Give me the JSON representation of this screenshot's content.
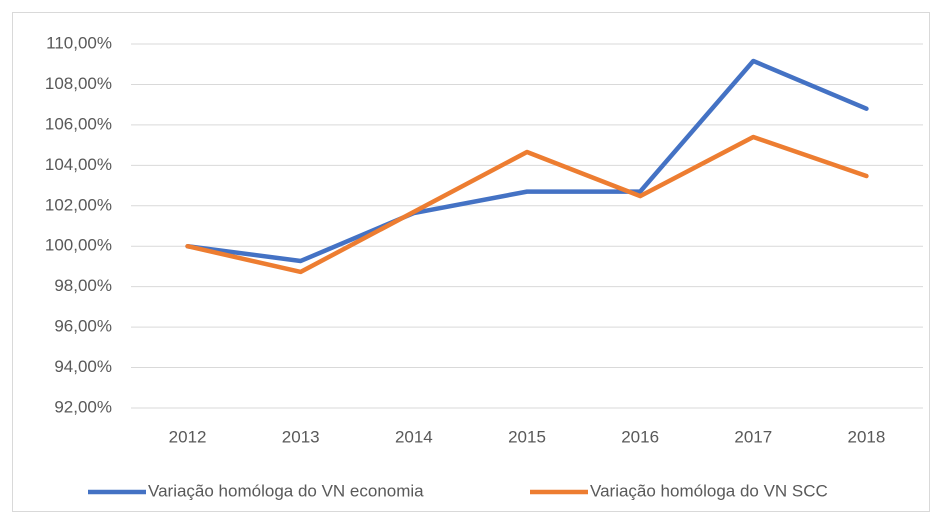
{
  "chart_data": {
    "type": "line",
    "categories": [
      "2012",
      "2013",
      "2014",
      "2015",
      "2016",
      "2017",
      "2018"
    ],
    "series": [
      {
        "name": "Variação homóloga do VN economia",
        "color": "#4472c4",
        "values": [
          100,
          99.27,
          101.64,
          102.7,
          102.7,
          109.16,
          106.8
        ]
      },
      {
        "name": "Variação homóloga do VN SCC",
        "color": "#ed7d31",
        "values": [
          100,
          98.73,
          101.7,
          104.66,
          102.48,
          105.4,
          103.47
        ]
      }
    ],
    "ylim": [
      92,
      110
    ],
    "yticks": [
      {
        "value": 92,
        "label": "92,00%"
      },
      {
        "value": 94,
        "label": "94,00%"
      },
      {
        "value": 96,
        "label": "96,00%"
      },
      {
        "value": 98,
        "label": "98,00%"
      },
      {
        "value": 100,
        "label": "100,00%"
      },
      {
        "value": 102,
        "label": "102,00%"
      },
      {
        "value": 104,
        "label": "104,00%"
      },
      {
        "value": 106,
        "label": "106,00%"
      },
      {
        "value": 108,
        "label": "108,00%"
      },
      {
        "value": 110,
        "label": "110,00%"
      }
    ],
    "grid": true,
    "legend": "bottom"
  }
}
